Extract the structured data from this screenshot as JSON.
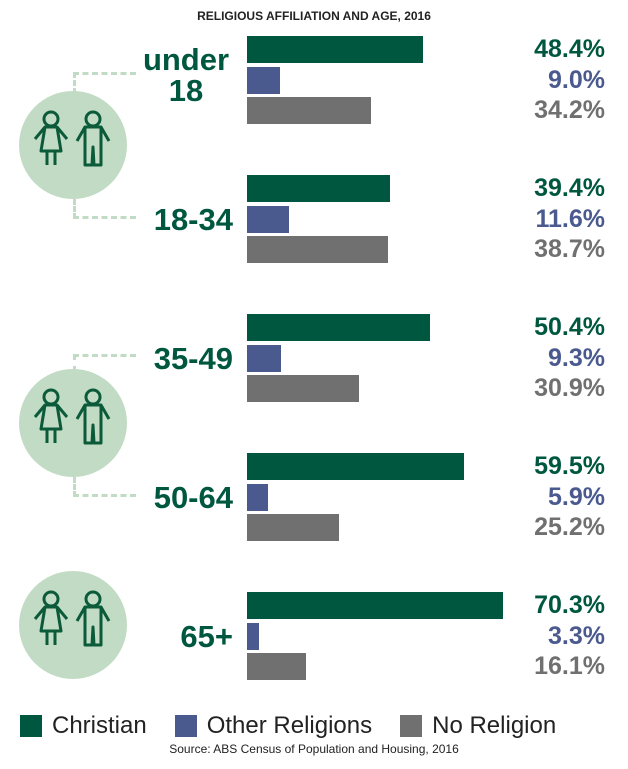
{
  "chart_data": {
    "type": "bar",
    "orientation": "horizontal",
    "title": "RELIGIOUS AFFILIATION AND AGE, 2016",
    "categories": [
      "under 18",
      "18-34",
      "35-49",
      "50-64",
      "65+"
    ],
    "series": [
      {
        "name": "Christian",
        "color": "#00573f",
        "values": [
          48.4,
          39.4,
          50.4,
          59.5,
          70.3
        ],
        "labels": [
          "48.4%",
          "39.4%",
          "50.4%",
          "59.5%",
          "70.3%"
        ]
      },
      {
        "name": "Other Religions",
        "color": "#4a5a8f",
        "values": [
          9.0,
          11.6,
          9.3,
          5.9,
          3.3
        ],
        "labels": [
          "9.0%",
          "11.6%",
          "9.3%",
          "5.9%",
          "3.3%"
        ]
      },
      {
        "name": "No Religion",
        "color": "#707070",
        "values": [
          34.2,
          38.7,
          30.9,
          25.2,
          16.1
        ],
        "labels": [
          "34.2%",
          "38.7%",
          "30.9%",
          "25.2%",
          "16.1%"
        ]
      }
    ],
    "legend": "bottom",
    "source": "Source: ABS Census of Population and Housing, 2016"
  },
  "icons": [
    "children-icon",
    "adults-icon",
    "elderly-icon"
  ]
}
